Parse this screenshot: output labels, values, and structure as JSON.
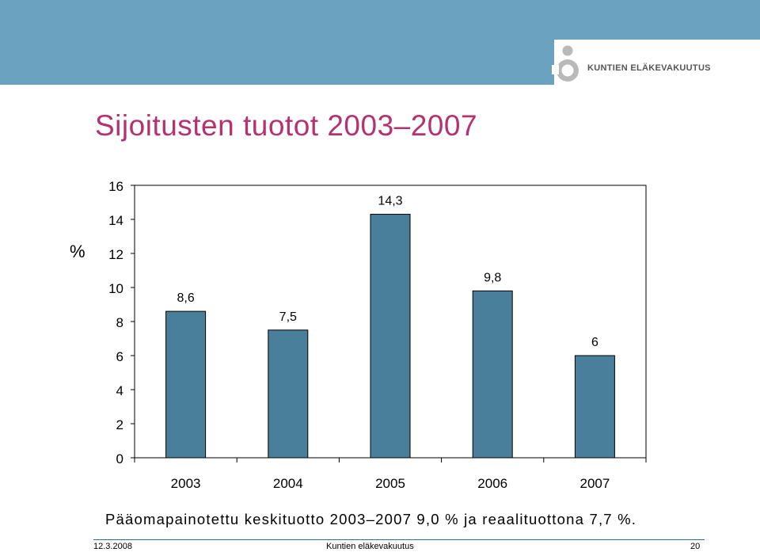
{
  "header": {
    "brand_name": "KUNTIEN ELÄKEVAKUUTUS",
    "logo_icon": "organization-logo-icon",
    "band_color": "#6aa2c0"
  },
  "slide": {
    "title": "Sijoitusten tuotot 2003–2007",
    "title_color": "#b5326e",
    "subtitle": "Pääomapainotettu keskituotto 2003–2007 9,0 % ja reaalituottona 7,7 %."
  },
  "chart_data": {
    "type": "bar",
    "categories": [
      "2003",
      "2004",
      "2005",
      "2006",
      "2007"
    ],
    "values": [
      8.6,
      7.5,
      14.3,
      9.8,
      6
    ],
    "data_labels": [
      "8,6",
      "7,5",
      "14,3",
      "9,8",
      "6"
    ],
    "ylabel": "%",
    "ylim": [
      0,
      16
    ],
    "yticks": [
      0,
      2,
      4,
      6,
      8,
      10,
      12,
      14,
      16
    ],
    "grid": false,
    "bar_color": "#4a7f9c"
  },
  "footer": {
    "date": "12.3.2008",
    "organization": "Kuntien eläkevakuutus",
    "page_number": "20"
  }
}
